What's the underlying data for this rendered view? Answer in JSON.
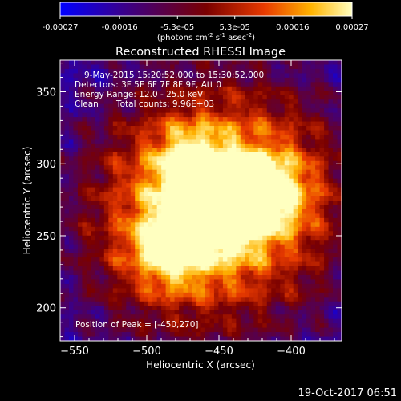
{
  "colorbar": {
    "ticks": [
      "-0.00027",
      "-0.00016",
      "-5.3e-05",
      "5.3e-05",
      "0.00016",
      "0.00027"
    ],
    "tick_values": [
      -0.00027,
      -0.00016,
      -5.3e-05,
      5.3e-05,
      0.00016,
      0.00027
    ],
    "range": [
      -0.00027,
      0.00027
    ],
    "unit_label": "(photons cm",
    "unit_sup1": "-2",
    "unit_mid": " s",
    "unit_sup2": "-1",
    "unit_tail": " asec",
    "unit_sup3": "-2",
    "unit_close": ")",
    "colors": [
      "#0000ff",
      "#3a008a",
      "#7a0000",
      "#e83a00",
      "#ffb300",
      "#ffffc0"
    ]
  },
  "chart_data": {
    "type": "heatmap",
    "title": "Reconstructed RHESSI Image",
    "xlabel": "Heliocentric X (arcsec)",
    "ylabel": "Heliocentric Y (arcsec)",
    "xlim": [
      -560,
      -365
    ],
    "ylim": [
      177,
      372
    ],
    "xticks": [
      -550,
      -500,
      -450,
      -400
    ],
    "yticks": [
      200,
      250,
      300,
      350
    ],
    "grid": false,
    "sources": [
      {
        "x": -450,
        "y": 270,
        "intensity": 1.0
      },
      {
        "x": -415,
        "y": 280,
        "intensity": 0.75
      },
      {
        "x": -485,
        "y": 240,
        "intensity": 0.7
      },
      {
        "x": -470,
        "y": 300,
        "intensity": 0.55
      }
    ],
    "annotations": {
      "line1": "9-May-2015 15:20:52.000 to 15:30:52.000",
      "line2": "Detectors: 3F 5F 6F 7F 8F 9F, Att 0",
      "line3": "Energy Range: 12.0 - 25.0 keV",
      "line4_a": "Clean",
      "line4_b": "Total counts: 9.96E+03",
      "peak": "Position of Peak = [-450,270]"
    }
  },
  "footer": {
    "date": "19-Oct-2017 06:51"
  }
}
